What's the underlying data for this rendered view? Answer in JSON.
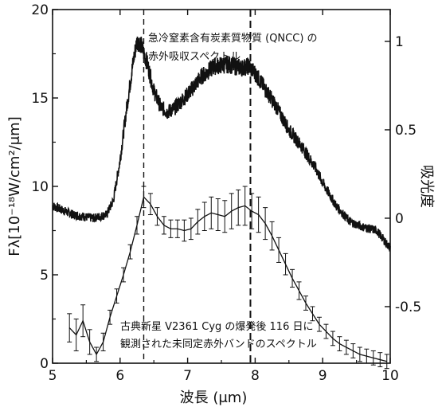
{
  "chart_data": {
    "type": "line",
    "xlabel": "波長 (μm)",
    "ylabel_left": "Fλ[10⁻¹⁸W/cm²/μm]",
    "ylabel_right": "吸光度",
    "xlim": [
      5,
      10
    ],
    "ylim_left": [
      0,
      20
    ],
    "ylim_right": [
      -0.82,
      1.18
    ],
    "x_ticks": [
      "5",
      "6",
      "7",
      "8",
      "9",
      "10"
    ],
    "y_left_ticks": [
      "0",
      "5",
      "10",
      "15",
      "20"
    ],
    "y_right_ticks": [
      "-0.5",
      "0",
      "0.5",
      "1"
    ],
    "vlines": [
      6.35,
      7.93
    ],
    "annotations": {
      "qncc_line1": "急冷窒素含有炭素質物質 (QNCC) の",
      "qncc_line2": "赤外吸収スペクトル",
      "nova_line1": "古典新星 V2361 Cyg の爆発後 116 日に",
      "nova_line2": "観測された未同定赤外バンドのスペクトル"
    },
    "series": [
      {
        "axis": "right",
        "style": "noisy-band",
        "x": [
          5.0,
          5.3,
          5.6,
          5.8,
          5.9,
          6.0,
          6.1,
          6.2,
          6.25,
          6.3,
          6.4,
          6.5,
          6.6,
          6.7,
          6.8,
          6.9,
          7.0,
          7.2,
          7.4,
          7.6,
          7.8,
          7.9,
          8.0,
          8.1,
          8.3,
          8.5,
          8.7,
          8.9,
          9.0,
          9.2,
          9.4,
          9.6,
          9.8,
          10.0
        ],
        "y": [
          0.07,
          0.02,
          0.0,
          0.02,
          0.1,
          0.33,
          0.63,
          0.9,
          1.0,
          0.99,
          0.88,
          0.72,
          0.63,
          0.6,
          0.62,
          0.66,
          0.7,
          0.8,
          0.86,
          0.87,
          0.85,
          0.86,
          0.82,
          0.76,
          0.64,
          0.5,
          0.4,
          0.28,
          0.2,
          0.07,
          -0.02,
          -0.05,
          -0.07,
          -0.17
        ]
      },
      {
        "axis": "left",
        "style": "errorbars",
        "x": [
          5.25,
          5.35,
          5.45,
          5.55,
          5.65,
          5.75,
          5.85,
          5.95,
          6.05,
          6.15,
          6.25,
          6.35,
          6.45,
          6.55,
          6.65,
          6.75,
          6.85,
          6.95,
          7.05,
          7.15,
          7.25,
          7.35,
          7.45,
          7.55,
          7.65,
          7.75,
          7.85,
          7.95,
          8.05,
          8.15,
          8.25,
          8.35,
          8.45,
          8.55,
          8.65,
          8.75,
          8.85,
          8.95,
          9.05,
          9.15,
          9.25,
          9.35,
          9.45,
          9.55,
          9.65,
          9.75,
          9.85,
          9.95
        ],
        "y": [
          2.0,
          1.6,
          2.4,
          1.2,
          0.5,
          1.2,
          2.6,
          3.8,
          5.0,
          6.3,
          7.8,
          9.4,
          9.0,
          8.3,
          7.8,
          7.6,
          7.6,
          7.5,
          7.6,
          8.0,
          8.3,
          8.5,
          8.4,
          8.3,
          8.6,
          8.8,
          8.9,
          8.6,
          8.4,
          7.9,
          7.2,
          6.4,
          5.6,
          4.8,
          4.1,
          3.4,
          2.8,
          2.2,
          1.8,
          1.4,
          1.1,
          0.9,
          0.7,
          0.5,
          0.4,
          0.3,
          0.2,
          0.1
        ],
        "err": [
          0.8,
          0.9,
          0.9,
          0.7,
          0.4,
          0.5,
          0.4,
          0.4,
          0.4,
          0.4,
          0.5,
          0.6,
          0.6,
          0.5,
          0.5,
          0.5,
          0.5,
          0.6,
          0.6,
          0.7,
          0.8,
          0.9,
          0.9,
          0.9,
          1.0,
          1.0,
          1.1,
          1.0,
          1.0,
          0.9,
          0.8,
          0.7,
          0.6,
          0.5,
          0.5,
          0.4,
          0.4,
          0.4,
          0.4,
          0.4,
          0.4,
          0.4,
          0.4,
          0.4,
          0.4,
          0.4,
          0.4,
          0.4
        ]
      }
    ]
  }
}
